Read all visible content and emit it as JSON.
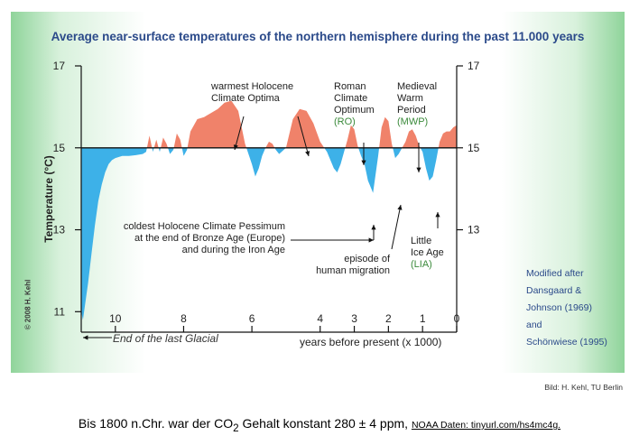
{
  "title": "Average near-surface temperatures of the northern hemisphere during the past 11.000 years",
  "copyright": "© 2008 H. Kehl",
  "credit": "Bild: H. Kehl, TU Berlin",
  "footer": {
    "prefix": "Bis 1800 n.Chr. war der CO",
    "sub": "2",
    "suffix": " Gehalt konstant 280 ± 4 ppm, ",
    "source": "NOAA Daten: tinyurl.com/hs4mc4g."
  },
  "chart_data": {
    "type": "area",
    "title": "Average near-surface temperatures of the northern hemisphere during the past 11.000 years",
    "xlabel": "years before present (x 1000)",
    "ylabel": "Temperature (°C)",
    "xlim": [
      11,
      0
    ],
    "ylim": [
      10.5,
      17
    ],
    "baseline": 15,
    "xticks": [
      10,
      8,
      6,
      4,
      3,
      2,
      1,
      0
    ],
    "yticks_left": [
      17,
      15,
      13,
      11
    ],
    "yticks_right": [
      17,
      15,
      13
    ],
    "x": [
      11,
      10.95,
      10.9,
      10.8,
      10.7,
      10.6,
      10.5,
      10.4,
      10.3,
      10.2,
      10.1,
      10.0,
      9.8,
      9.6,
      9.4,
      9.2,
      9.1,
      9.0,
      8.9,
      8.8,
      8.7,
      8.6,
      8.5,
      8.4,
      8.3,
      8.2,
      8.1,
      8.0,
      7.9,
      7.8,
      7.6,
      7.4,
      7.2,
      7.0,
      6.8,
      6.6,
      6.4,
      6.2,
      6.0,
      5.9,
      5.8,
      5.7,
      5.6,
      5.5,
      5.4,
      5.3,
      5.2,
      5.0,
      4.8,
      4.6,
      4.4,
      4.2,
      4.0,
      3.8,
      3.6,
      3.5,
      3.4,
      3.3,
      3.2,
      3.1,
      3.0,
      2.9,
      2.8,
      2.7,
      2.6,
      2.5,
      2.45,
      2.4,
      2.3,
      2.2,
      2.1,
      2.0,
      1.9,
      1.8,
      1.7,
      1.6,
      1.5,
      1.4,
      1.3,
      1.2,
      1.1,
      1.0,
      0.9,
      0.8,
      0.7,
      0.6,
      0.5,
      0.4,
      0.3,
      0.2,
      0.1,
      0.0
    ],
    "values": [
      11.0,
      10.8,
      11.1,
      11.7,
      12.4,
      13.1,
      13.7,
      14.1,
      14.4,
      14.6,
      14.7,
      14.75,
      14.8,
      14.8,
      14.82,
      14.85,
      14.9,
      15.3,
      14.9,
      15.2,
      14.9,
      15.25,
      15.1,
      14.85,
      14.95,
      15.35,
      15.2,
      14.8,
      14.95,
      15.4,
      15.7,
      15.75,
      15.85,
      15.95,
      16.1,
      16.15,
      15.9,
      15.1,
      14.6,
      14.3,
      14.5,
      14.8,
      15.0,
      15.15,
      15.1,
      14.95,
      14.85,
      15.0,
      15.7,
      15.95,
      15.9,
      15.6,
      15.15,
      14.9,
      14.5,
      14.4,
      14.6,
      14.9,
      15.2,
      15.55,
      15.45,
      15.05,
      14.8,
      14.6,
      14.2,
      14.0,
      13.9,
      14.2,
      14.8,
      15.5,
      15.75,
      15.65,
      15.1,
      14.75,
      14.85,
      15.0,
      15.15,
      15.4,
      15.45,
      15.3,
      15.05,
      14.9,
      14.5,
      14.2,
      14.3,
      14.7,
      15.15,
      15.35,
      15.4,
      15.4,
      15.5,
      15.55
    ],
    "annotations": [
      {
        "lines": [
          "warmest Holocene",
          "Climate Optima"
        ],
        "x": 6.6,
        "y": 16.1
      },
      {
        "lines": [
          "Roman",
          "Climate",
          "Optimum"
        ],
        "abbr": "(RO)",
        "x": 2.15,
        "y": 15.75
      },
      {
        "lines": [
          "Medieval",
          "Warm",
          "Period"
        ],
        "abbr": "(MWP)",
        "x": 1.2,
        "y": 15.45
      },
      {
        "lines": [
          "coldest Holocene Climate Pessimum",
          "at the end of Bronze Age (Europe)",
          "and during the Iron Age"
        ],
        "x": 2.45,
        "y": 14.0
      },
      {
        "lines": [
          "episode of",
          "human migration"
        ],
        "x": 1.9,
        "y": 14.75
      },
      {
        "lines": [
          "Little",
          "Ice Age"
        ],
        "abbr": "(LIA)",
        "x": 0.8,
        "y": 14.2
      },
      {
        "lines": [
          "End of the last Glacial"
        ],
        "x": 10.95,
        "y": 10.8
      },
      {
        "lines": [
          "Modified after",
          "Dansgaard &",
          "Johnson (1969)",
          "and",
          "Schönwiese (1995)"
        ]
      }
    ],
    "colors": {
      "warm": "#f0826a",
      "cold": "#3db1e8",
      "abbr": "#3b8a3b",
      "title": "#2b4a8a"
    }
  }
}
